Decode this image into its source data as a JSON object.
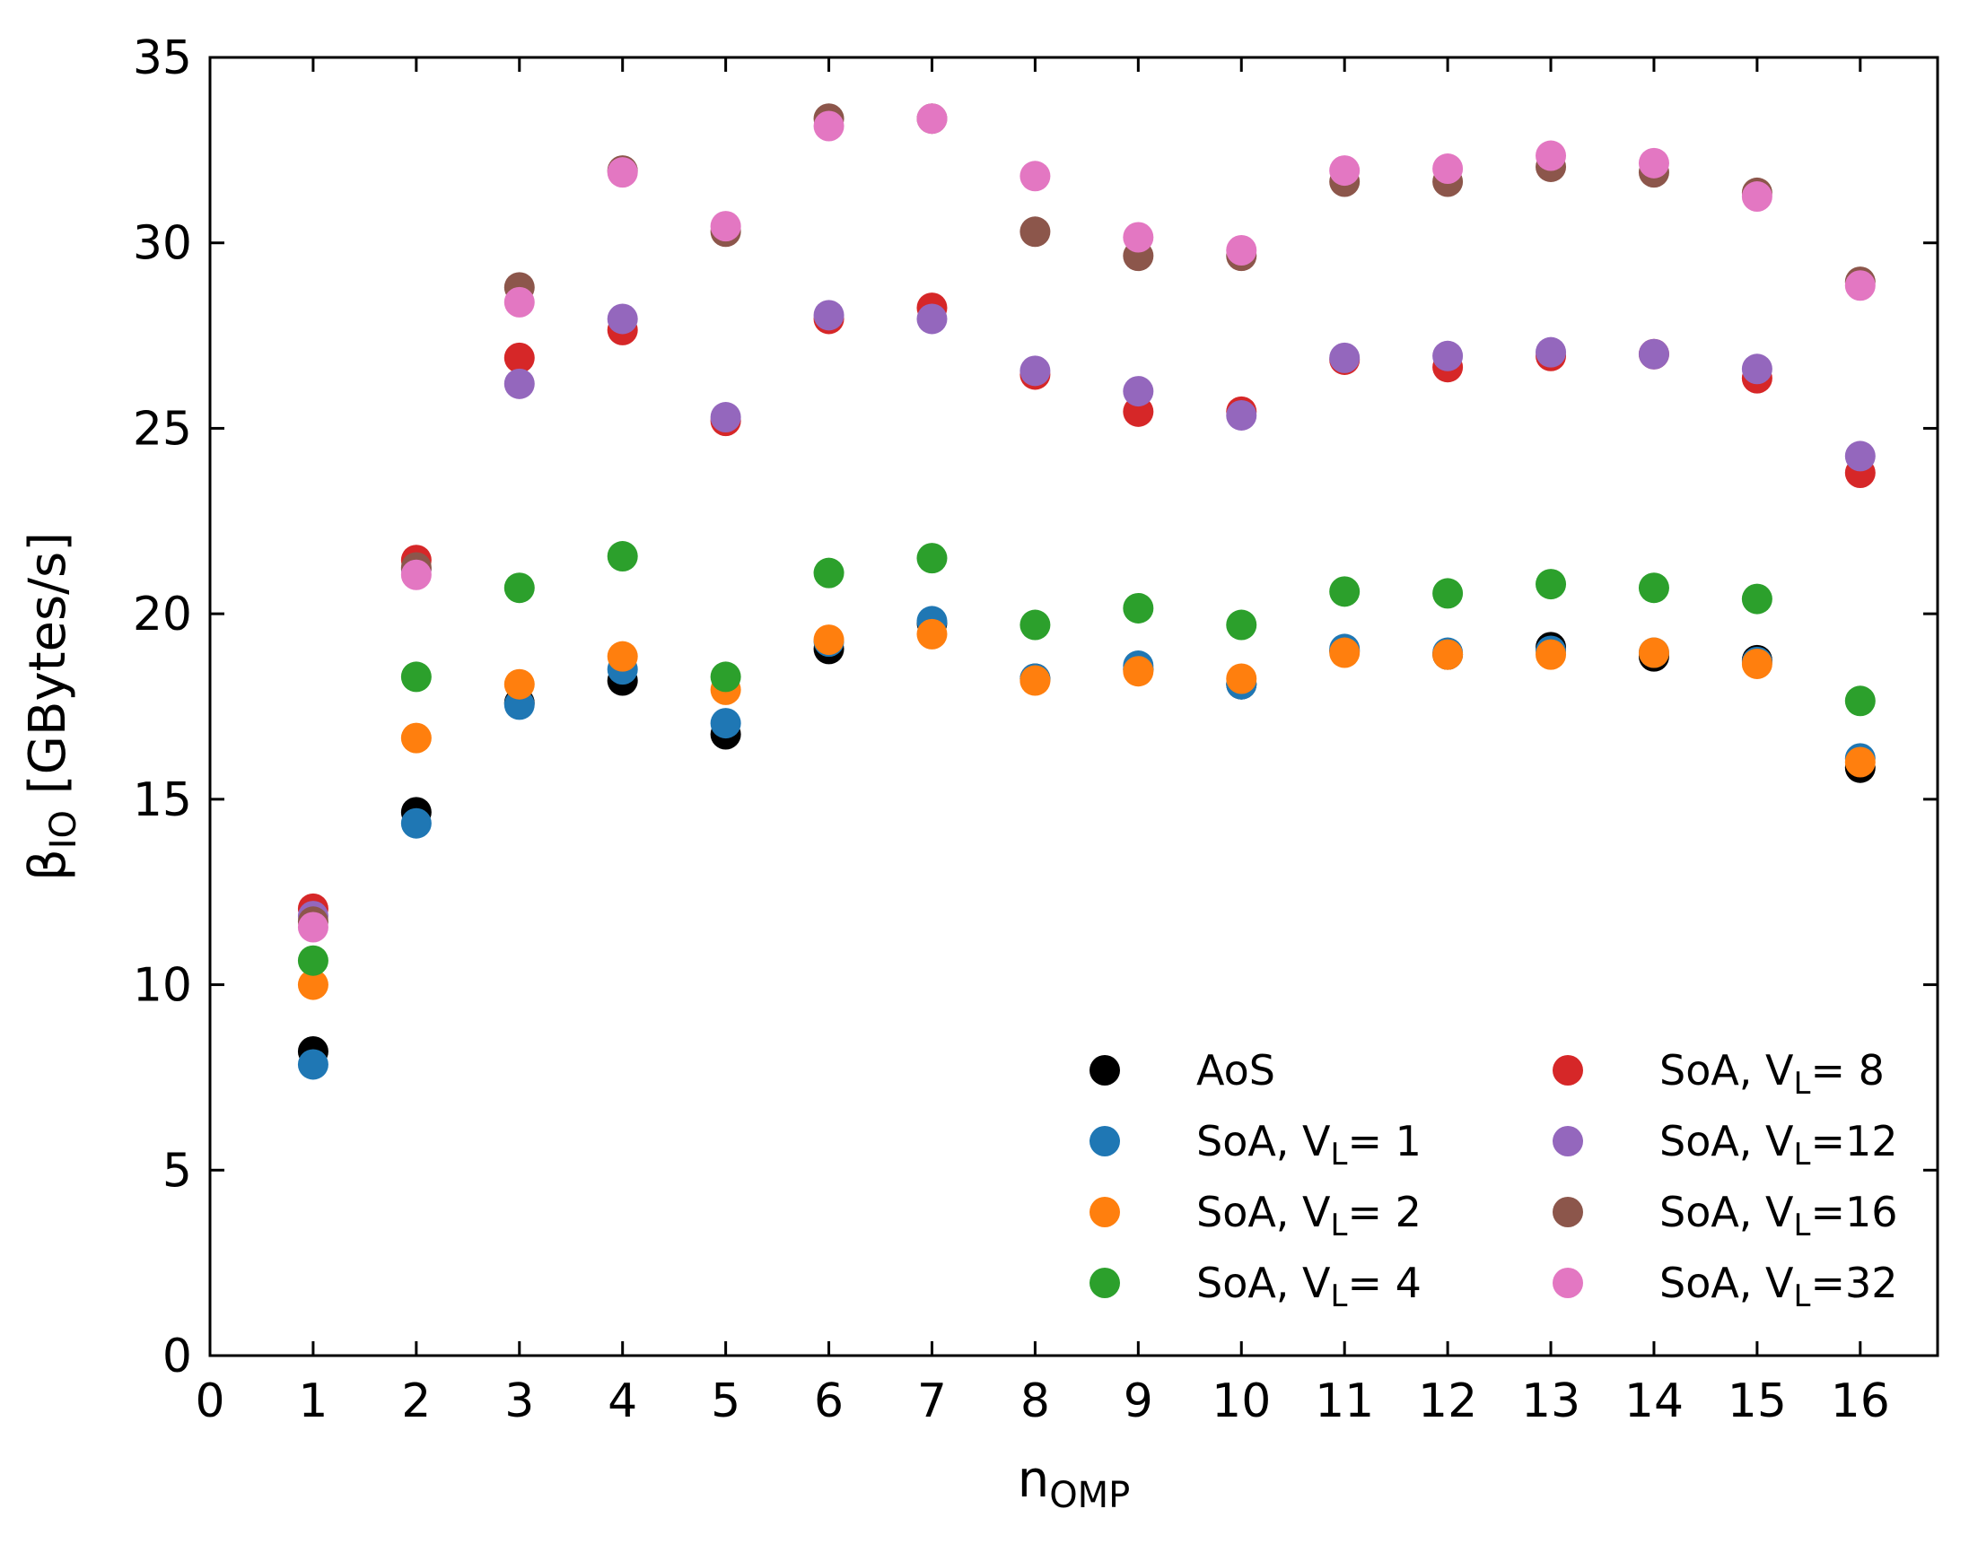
{
  "chart_data": {
    "type": "scatter",
    "xlabel": {
      "main": "n",
      "sub": "OMP"
    },
    "ylabel": {
      "main": "β",
      "sub": "IO",
      "rest": " [GBytes/s]"
    },
    "xlim": [
      0,
      16.75
    ],
    "ylim": [
      0,
      35
    ],
    "xticks": [
      0,
      1,
      2,
      3,
      4,
      5,
      6,
      7,
      8,
      9,
      10,
      11,
      12,
      13,
      14,
      15,
      16
    ],
    "yticks": [
      0,
      5,
      10,
      15,
      20,
      25,
      30,
      35
    ],
    "grid": false,
    "legend_position": "lower-right",
    "legend_columns": 2,
    "x": [
      1,
      2,
      3,
      4,
      5,
      6,
      7,
      8,
      9,
      10,
      11,
      12,
      13,
      14,
      15,
      16
    ],
    "series": [
      {
        "name": "AoS",
        "prefix": "AoS",
        "sub": "",
        "suffix": "",
        "color": "#000000",
        "values": [
          8.2,
          14.65,
          17.6,
          18.2,
          16.75,
          19.05,
          19.75,
          18.25,
          18.5,
          18.1,
          19.0,
          18.9,
          19.1,
          18.85,
          18.75,
          15.85
        ]
      },
      {
        "name": "SoA, VL= 1",
        "prefix": "SoA, V",
        "sub": "L",
        "suffix": "= 1",
        "color": "#1f77b4",
        "values": [
          7.85,
          14.35,
          17.55,
          18.5,
          17.05,
          19.25,
          19.8,
          18.25,
          18.6,
          18.1,
          19.05,
          18.95,
          19.0,
          18.95,
          18.7,
          16.1
        ]
      },
      {
        "name": "SoA, VL= 2",
        "prefix": "SoA, V",
        "sub": "L",
        "suffix": "= 2",
        "color": "#ff7f0e",
        "values": [
          10.0,
          16.65,
          18.1,
          18.85,
          17.95,
          19.3,
          19.45,
          18.2,
          18.45,
          18.25,
          18.95,
          18.9,
          18.9,
          18.95,
          18.65,
          16.0
        ]
      },
      {
        "name": "SoA, VL= 4",
        "prefix": "SoA, V",
        "sub": "L",
        "suffix": "= 4",
        "color": "#2ca02c",
        "values": [
          10.65,
          18.3,
          20.7,
          21.55,
          18.3,
          21.1,
          21.5,
          19.7,
          20.15,
          19.7,
          20.6,
          20.55,
          20.8,
          20.7,
          20.4,
          17.65
        ]
      },
      {
        "name": "SoA, VL= 8",
        "prefix": "SoA, V",
        "sub": "L",
        "suffix": "= 8",
        "color": "#d62728",
        "values": [
          12.05,
          21.45,
          26.9,
          27.65,
          25.2,
          27.95,
          28.25,
          26.45,
          25.45,
          25.45,
          26.85,
          26.65,
          26.95,
          27.0,
          26.35,
          23.8
        ]
      },
      {
        "name": "SoA, VL=12",
        "prefix": "SoA, V",
        "sub": "L",
        "suffix": "=12",
        "color": "#9467bd",
        "values": [
          11.85,
          21.2,
          26.2,
          27.95,
          25.3,
          28.05,
          27.95,
          26.55,
          26.0,
          25.35,
          26.9,
          26.95,
          27.05,
          27.0,
          26.6,
          24.25
        ]
      },
      {
        "name": "SoA, VL=16",
        "prefix": "SoA, V",
        "sub": "L",
        "suffix": "=16",
        "color": "#8c564b",
        "values": [
          11.7,
          21.25,
          28.8,
          31.95,
          30.3,
          33.35,
          33.35,
          30.3,
          29.65,
          29.65,
          31.65,
          31.65,
          32.05,
          31.9,
          31.35,
          28.95
        ]
      },
      {
        "name": "SoA, VL=32",
        "prefix": "SoA, V",
        "sub": "L",
        "suffix": "=32",
        "color": "#e377c2",
        "values": [
          11.55,
          21.05,
          28.4,
          31.9,
          30.45,
          33.15,
          33.35,
          31.8,
          30.15,
          29.8,
          31.95,
          32.0,
          32.35,
          32.15,
          31.25,
          28.85
        ]
      }
    ]
  }
}
